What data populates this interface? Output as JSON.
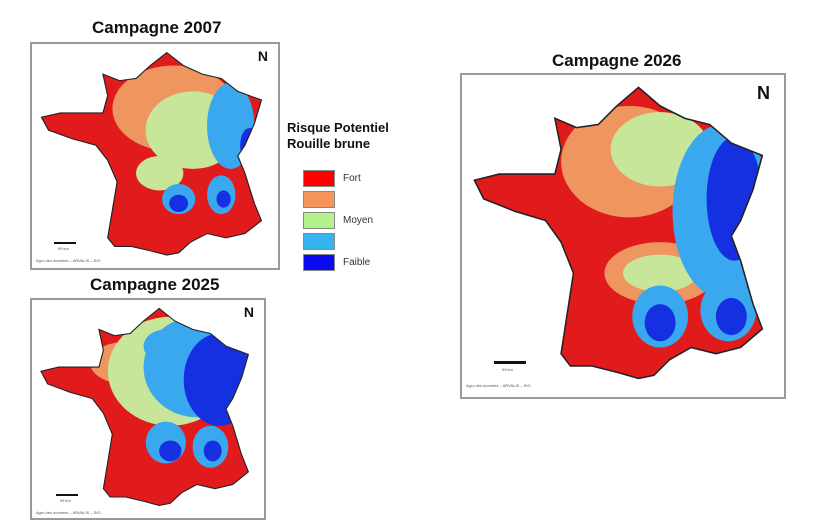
{
  "maps": [
    {
      "title": "Campagne 2007",
      "scale_label": "99 km",
      "credit": "Agro des données – ARVALIS – SIG"
    },
    {
      "title": "Campagne 2025",
      "scale_label": "99 km",
      "credit": "Agro des données – ARVALIS – SIG"
    },
    {
      "title": "Campagne 2026",
      "scale_label": "99 km",
      "credit": "Agro des données – ARVALIS – SIG"
    }
  ],
  "north_symbol": "N",
  "legend": {
    "title_line1": "Risque Potentiel",
    "title_line2": "Rouille brune",
    "items": [
      {
        "label": "Fort",
        "color": "#ff0000"
      },
      {
        "label": "",
        "color": "#f4935a"
      },
      {
        "label": "Moyen",
        "color": "#b4f28c"
      },
      {
        "label": "",
        "color": "#35b4f0"
      },
      {
        "label": "Faible",
        "color": "#0a0aee"
      }
    ]
  },
  "colors": {
    "fort_map": "#e11b1b",
    "orange": "#ef9660",
    "green": "#c8e69a",
    "lightblue": "#3aa8ee",
    "blue": "#1430e0"
  }
}
